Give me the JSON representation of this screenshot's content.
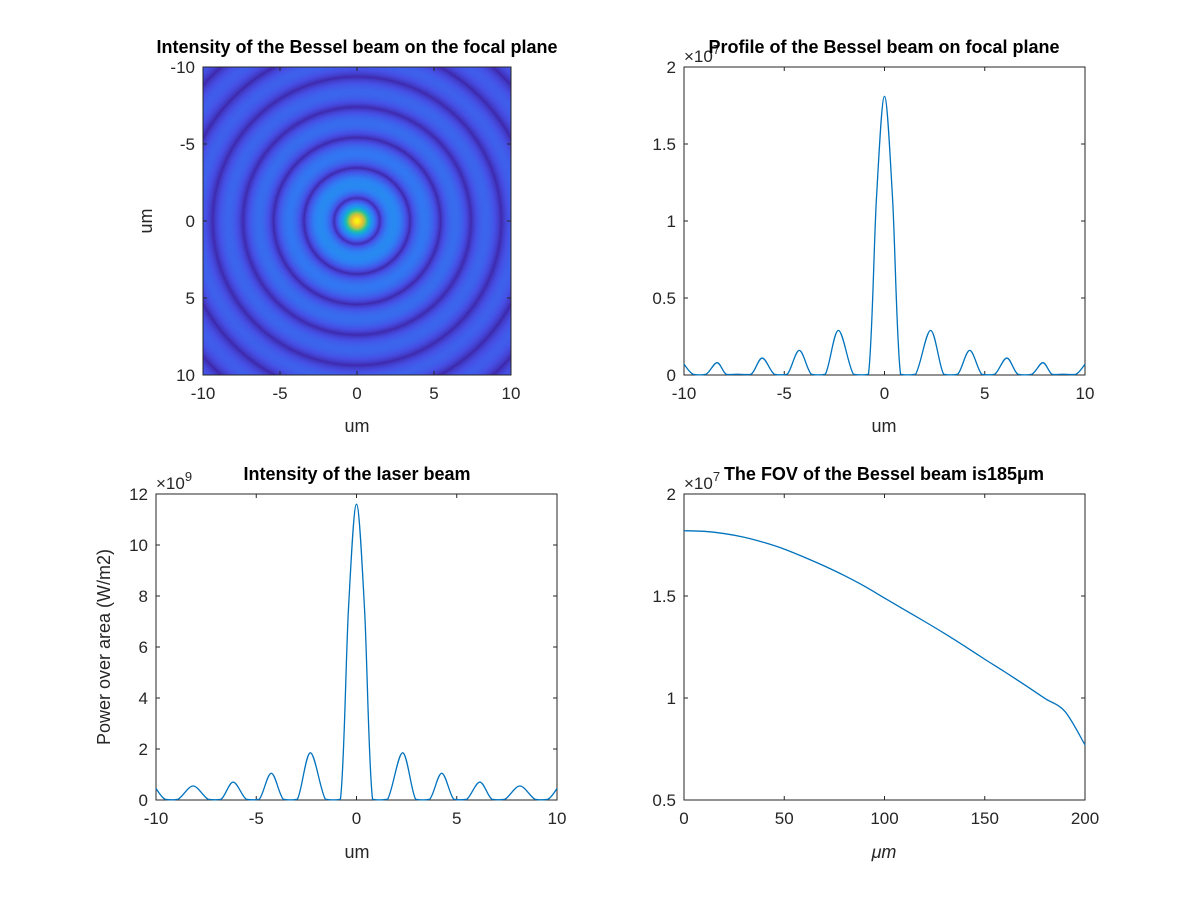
{
  "colors": {
    "line": "#0072BD",
    "axis": "#262626"
  },
  "chart_data": [
    {
      "id": "p1",
      "type": "heatmap",
      "title": "Intensity of the Bessel beam on the focal plane",
      "xlabel": "um",
      "ylabel": "um",
      "xlim": [
        -10,
        10
      ],
      "ylim": [
        -10,
        10
      ],
      "y_reversed": true,
      "xticks": [
        -10,
        -5,
        0,
        5,
        10
      ],
      "yticks": [
        -10,
        -5,
        0,
        5,
        10
      ],
      "xtick_labels": [
        "-10",
        "-5",
        "0",
        "5",
        "10"
      ],
      "ytick_labels": [
        "-10",
        "-5",
        "0",
        "5",
        "10"
      ],
      "colormap": "parula",
      "function": "J0(2.405*r)^2 radial Bessel pattern, peak at center",
      "grid": false
    },
    {
      "id": "p2",
      "type": "line",
      "title": "Profile of the  Bessel beam on focal plane",
      "xlabel": "um",
      "ylabel": "",
      "xlim": [
        -10,
        10
      ],
      "ylim": [
        0,
        2
      ],
      "exponent_label": "×10",
      "exponent_power": "7",
      "xticks": [
        -10,
        -5,
        0,
        5,
        10
      ],
      "yticks": [
        0,
        0.5,
        1,
        1.5,
        2
      ],
      "xtick_labels": [
        "-10",
        "-5",
        "0",
        "5",
        "10"
      ],
      "ytick_labels": [
        "0",
        "0.5",
        "1",
        "1.5",
        "2"
      ],
      "grid": false,
      "series": [
        {
          "x": [
            -10,
            -9.55,
            -8.9,
            -8.35,
            -7.9,
            -7.35,
            -6.65,
            -6.1,
            -5.5,
            -4.85,
            -4.25,
            -3.65,
            -2.95,
            -2.3,
            -1.55,
            -0.8,
            -0.4,
            0,
            0.4,
            0.8,
            1.55,
            2.3,
            2.95,
            3.65,
            4.25,
            4.85,
            5.5,
            6.1,
            6.65,
            7.35,
            7.9,
            8.35,
            8.9,
            9.55,
            10
          ],
          "y": [
            0.07,
            0.005,
            0.005,
            0.08,
            0.005,
            0.005,
            0.005,
            0.11,
            0.005,
            0.005,
            0.16,
            0.005,
            0.005,
            0.29,
            0.005,
            0.005,
            1.15,
            1.81,
            1.15,
            0.005,
            0.005,
            0.29,
            0.005,
            0.005,
            0.16,
            0.005,
            0.005,
            0.11,
            0.005,
            0.005,
            0.08,
            0.005,
            0.005,
            0.005,
            0.07
          ]
        }
      ]
    },
    {
      "id": "p3",
      "type": "line",
      "title": "Intensity of the laser beam",
      "xlabel": "um",
      "ylabel": "Power over area (W/m2)",
      "xlim": [
        -10,
        10
      ],
      "ylim": [
        0,
        12
      ],
      "exponent_label": "×10",
      "exponent_power": "9",
      "xticks": [
        -10,
        -5,
        0,
        5,
        10
      ],
      "yticks": [
        0,
        2,
        4,
        6,
        8,
        10,
        12
      ],
      "xtick_labels": [
        "-10",
        "-5",
        "0",
        "5",
        "10"
      ],
      "ytick_labels": [
        "0",
        "2",
        "4",
        "6",
        "8",
        "10",
        "12"
      ],
      "grid": false,
      "series": [
        {
          "x": [
            -10,
            -9.55,
            -8.9,
            -8.15,
            -7.4,
            -6.75,
            -6.15,
            -5.5,
            -4.85,
            -4.25,
            -3.65,
            -2.95,
            -2.3,
            -1.55,
            -0.8,
            -0.4,
            0,
            0.4,
            0.8,
            1.55,
            2.3,
            2.95,
            3.65,
            4.25,
            4.85,
            5.5,
            6.15,
            6.75,
            7.4,
            8.15,
            8.9,
            9.55,
            10
          ],
          "y": [
            0.45,
            0.03,
            0.03,
            0.55,
            0.03,
            0.03,
            0.7,
            0.03,
            0.03,
            1.05,
            0.03,
            0.03,
            1.85,
            0.03,
            0.03,
            7.5,
            11.6,
            7.5,
            0.03,
            0.03,
            1.85,
            0.03,
            0.03,
            1.05,
            0.03,
            0.03,
            0.7,
            0.03,
            0.03,
            0.55,
            0.03,
            0.03,
            0.45
          ]
        }
      ]
    },
    {
      "id": "p4",
      "type": "line",
      "title": "The FOV of the Bessel beam is185μm",
      "xlabel": "μm",
      "ylabel": "",
      "xlim": [
        0,
        200
      ],
      "ylim": [
        0.5,
        2
      ],
      "exponent_label": "×10",
      "exponent_power": "7",
      "xticks": [
        0,
        50,
        100,
        150,
        200
      ],
      "yticks": [
        0.5,
        1,
        1.5,
        2
      ],
      "xtick_labels": [
        "0",
        "50",
        "100",
        "150",
        "200"
      ],
      "ytick_labels": [
        "0.5",
        "1",
        "1.5",
        "2"
      ],
      "grid": false,
      "series": [
        {
          "x": [
            0,
            10,
            20,
            30,
            40,
            50,
            60,
            70,
            80,
            90,
            100,
            110,
            120,
            130,
            140,
            150,
            160,
            170,
            180,
            190,
            200
          ],
          "y": [
            1.82,
            1.817,
            1.806,
            1.788,
            1.762,
            1.73,
            1.69,
            1.647,
            1.6,
            1.548,
            1.49,
            1.432,
            1.375,
            1.316,
            1.254,
            1.19,
            1.128,
            1.064,
            0.998,
            0.934,
            0.77
          ]
        }
      ]
    }
  ]
}
